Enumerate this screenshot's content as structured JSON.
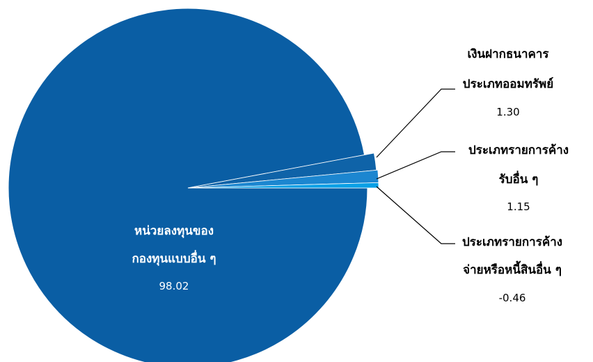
{
  "chart_data": {
    "type": "pie",
    "slices": [
      {
        "label_lines": [
          "หน่วยลงทุนของ",
          "กองทุนแบบอื่น ๆ"
        ],
        "value_text": "98.02",
        "value": 98.02,
        "color": "#0a5ea4"
      },
      {
        "label_lines": [
          "เงินฝากธนาคาร",
          "ประเภทออมทรัพย์"
        ],
        "value_text": "1.30",
        "value": 1.3,
        "color": "#0f63a8"
      },
      {
        "label_lines": [
          "ประเภทรายการค้าง",
          "รับอื่น ๆ"
        ],
        "value_text": "1.15",
        "value": 1.15,
        "color": "#1c86d0"
      },
      {
        "label_lines": [
          "ประเภทรายการค้าง",
          "จ่ายหรือหนี้สินอื่น ๆ"
        ],
        "value_text": "-0.46",
        "value": -0.46,
        "color": "#0aa0e6"
      }
    ]
  }
}
